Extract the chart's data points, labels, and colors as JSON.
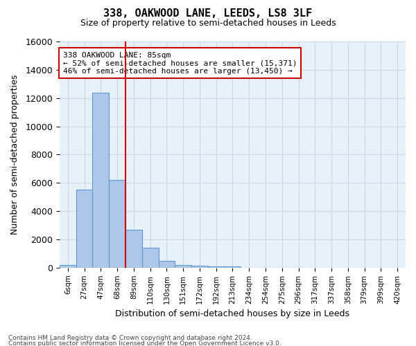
{
  "title1": "338, OAKWOOD LANE, LEEDS, LS8 3LF",
  "title2": "Size of property relative to semi-detached houses in Leeds",
  "xlabel": "Distribution of semi-detached houses by size in Leeds",
  "ylabel": "Number of semi-detached properties",
  "footer1": "Contains HM Land Registry data © Crown copyright and database right 2024.",
  "footer2": "Contains public sector information licensed under the Open Government Licence v3.0.",
  "bin_labels": [
    "6sqm",
    "27sqm",
    "47sqm",
    "68sqm",
    "89sqm",
    "110sqm",
    "130sqm",
    "151sqm",
    "172sqm",
    "192sqm",
    "213sqm",
    "234sqm",
    "254sqm",
    "275sqm",
    "296sqm",
    "317sqm",
    "337sqm",
    "358sqm",
    "379sqm",
    "399sqm",
    "420sqm"
  ],
  "bar_values": [
    200,
    5500,
    12400,
    6200,
    2700,
    1400,
    500,
    200,
    150,
    100,
    70,
    0,
    0,
    0,
    0,
    0,
    0,
    0,
    0,
    0,
    0
  ],
  "bar_color": "#aec6e8",
  "bar_edge_color": "#5b9bd5",
  "property_line_x": 3.5,
  "property_line_color": "#cc0000",
  "ylim": [
    0,
    16000
  ],
  "yticks": [
    0,
    2000,
    4000,
    6000,
    8000,
    10000,
    12000,
    14000,
    16000
  ],
  "annotation_title": "338 OAKWOOD LANE: 85sqm",
  "annotation_line1": "← 52% of semi-detached houses are smaller (15,371)",
  "annotation_line2": "46% of semi-detached houses are larger (13,450) →",
  "annotation_box_color": "#ffffff",
  "annotation_box_edge": "#cc0000",
  "grid_color": "#c8d8e8",
  "bg_color": "#e8f0f8"
}
